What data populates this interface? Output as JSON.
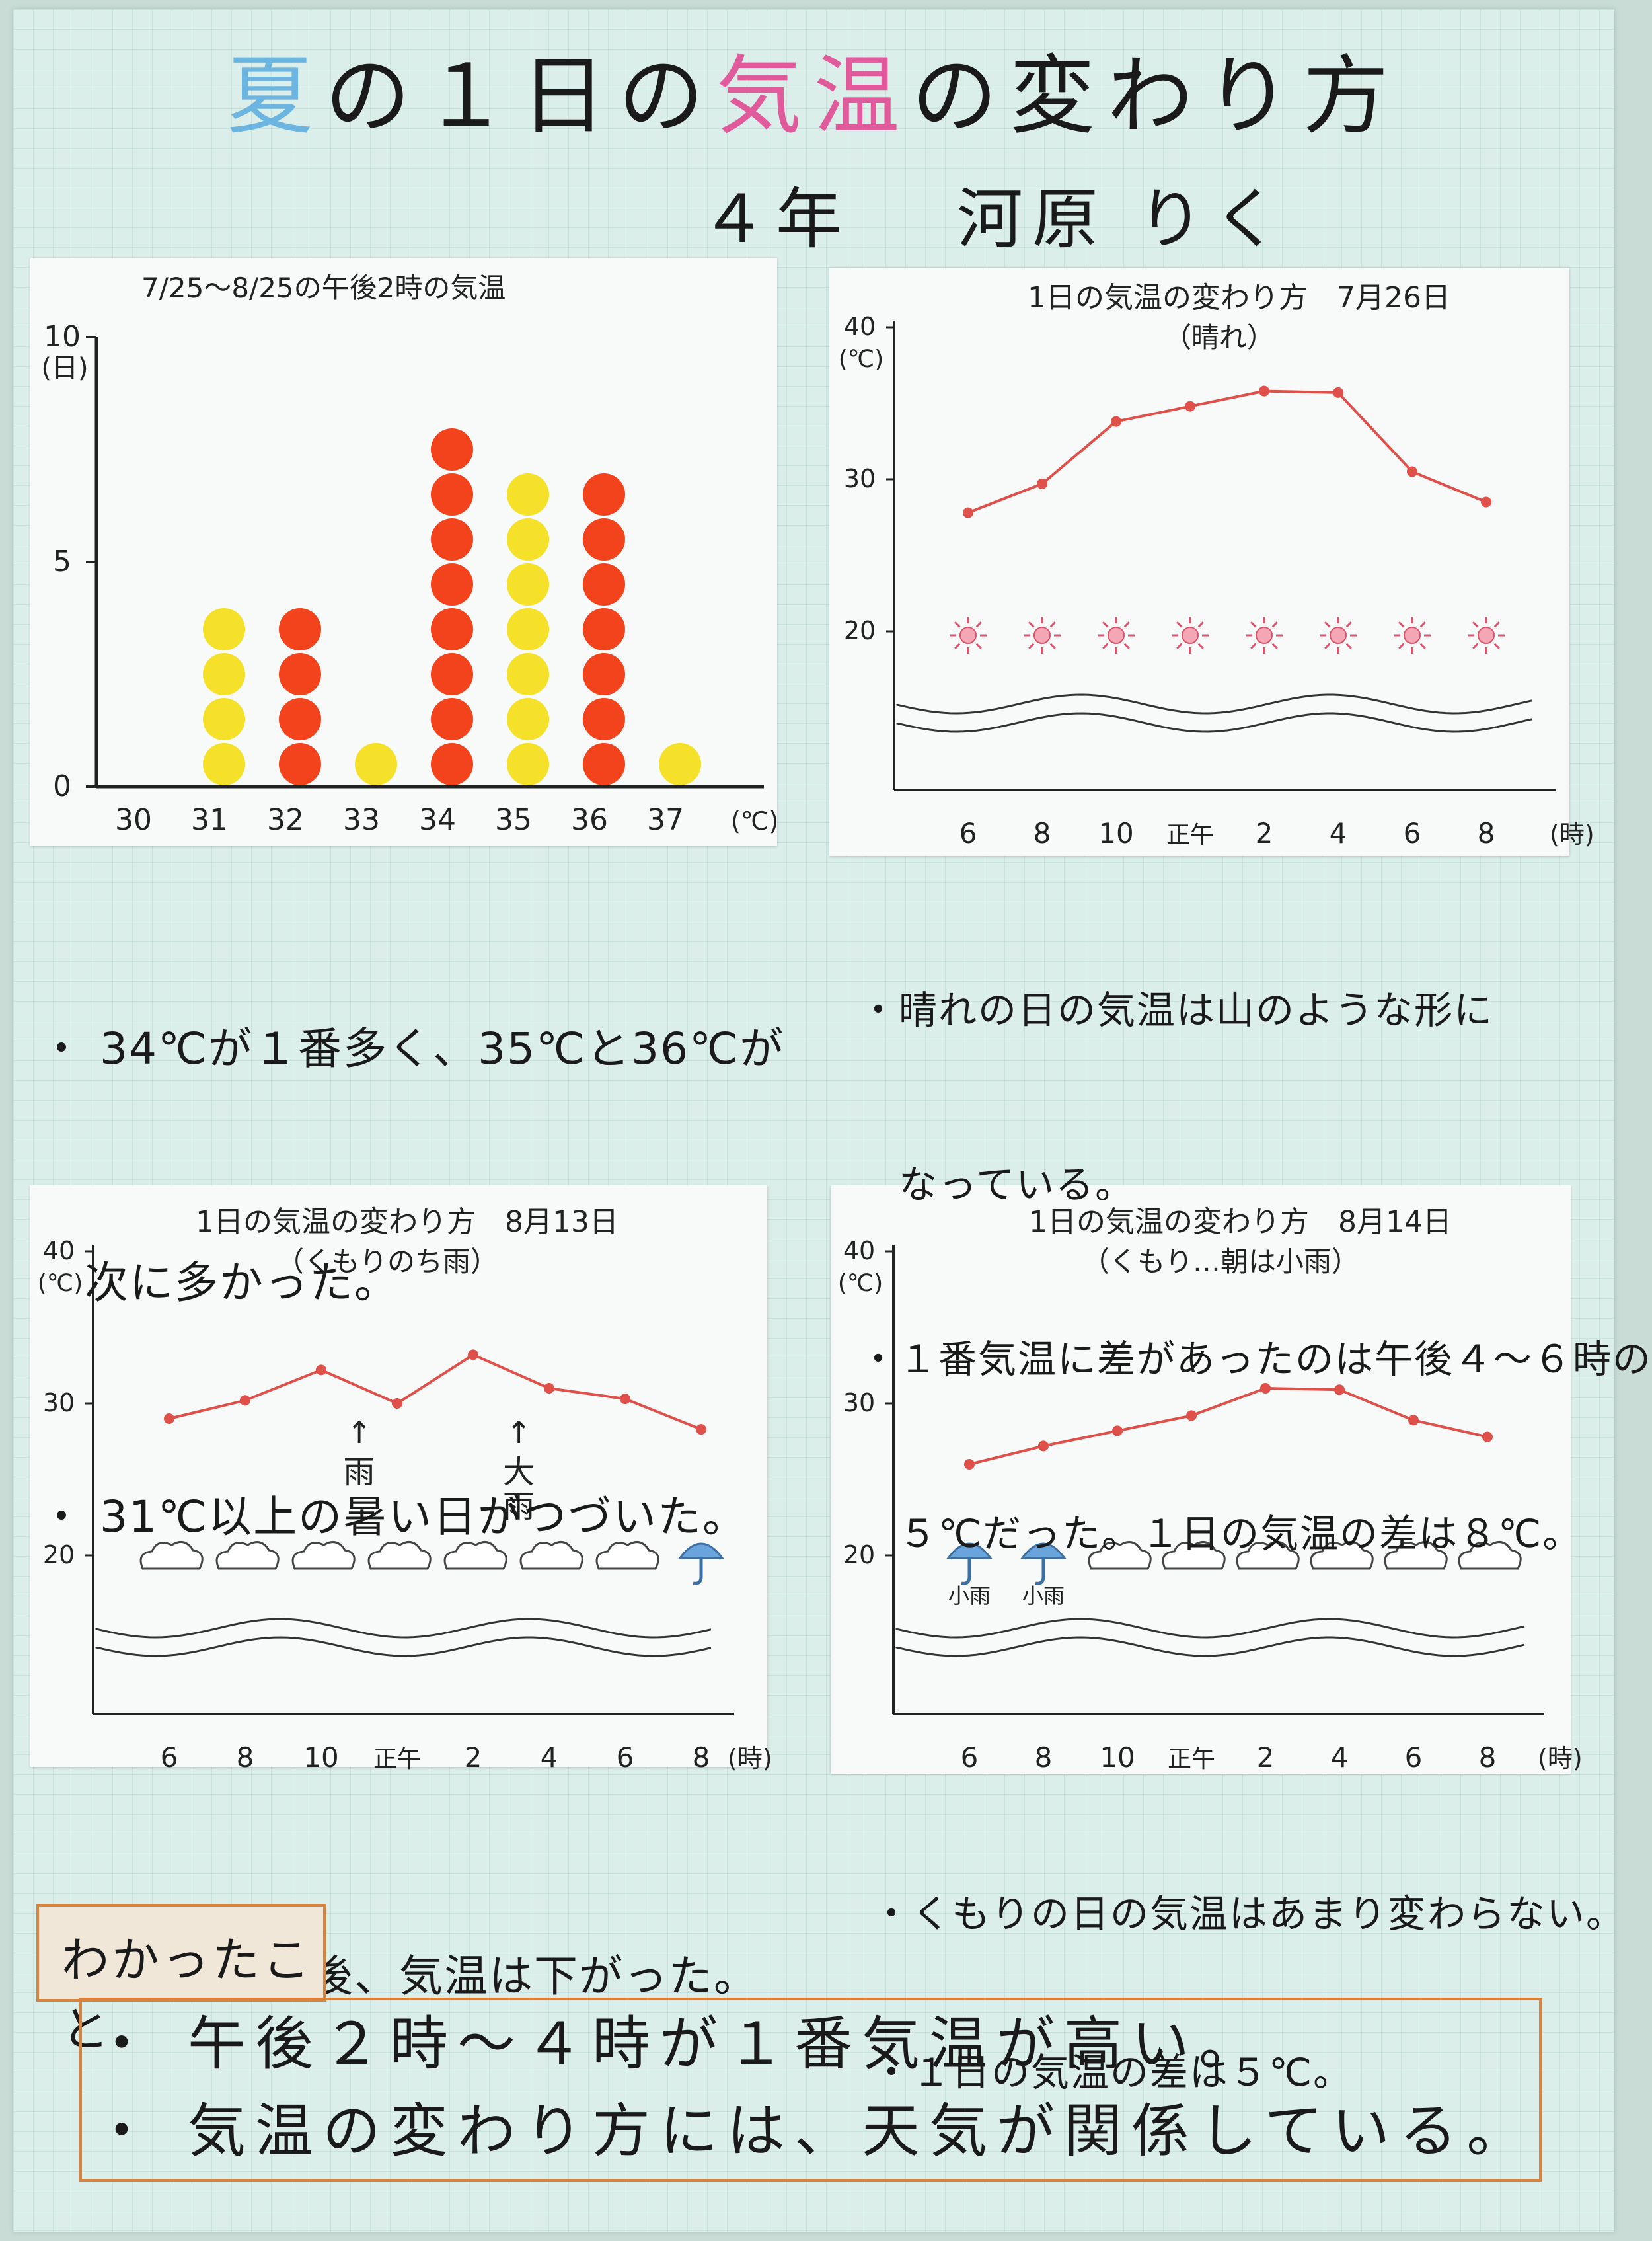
{
  "title": {
    "part1": "夏",
    "part2": "の１日の",
    "part3": "気温",
    "part4": "の変わり方"
  },
  "author": {
    "grade": "４年",
    "name": "河原 りく"
  },
  "colors": {
    "yellow_dot": "#f6e12a",
    "red_dot": "#f2431c",
    "line": "#e0504a",
    "sun": "#e0506a",
    "cloud_umbrella": "#6aa4dc"
  },
  "panel1": {
    "heading": "7/25〜8/25の午後2時の気温",
    "y_unit": "(日)",
    "x_unit": "(℃)",
    "y_ticks": [
      "0",
      "5",
      "10"
    ],
    "chart_data": {
      "type": "bar",
      "categories": [
        "30",
        "31",
        "32",
        "33",
        "34",
        "35",
        "36",
        "37"
      ],
      "values": [
        0,
        4,
        4,
        1,
        8,
        7,
        7,
        1
      ],
      "dot_colors": [
        "yellow",
        "yellow",
        "red",
        "yellow",
        "red",
        "yellow",
        "red",
        "yellow"
      ],
      "ylim": [
        0,
        10
      ]
    },
    "notes": [
      "・ 34℃が１番多く、35℃と36℃が",
      "　次に多かった。",
      "・ 31℃以上の暑い日がつづいた。"
    ]
  },
  "panel2": {
    "heading": "1日の気温の変わり方　7月26日",
    "sub": "（晴れ）",
    "y_unit": "(℃)",
    "x_unit": "(時)",
    "y_ticks": [
      "20",
      "30",
      "40"
    ],
    "x_ticks": [
      "6",
      "8",
      "10",
      "正午",
      "2",
      "4",
      "6",
      "8"
    ],
    "weather": [
      "sun",
      "sun",
      "sun",
      "sun",
      "sun",
      "sun",
      "sun",
      "sun"
    ],
    "chart_data": {
      "type": "line",
      "x": [
        "6",
        "8",
        "10",
        "正午",
        "2",
        "4",
        "6",
        "8"
      ],
      "values": [
        27.8,
        29.7,
        33.8,
        34.8,
        35.8,
        35.7,
        30.5,
        28.5
      ],
      "ylim": [
        10,
        40
      ]
    },
    "notes": [
      "・晴れの日の気温は山のような形に",
      "　なっている。",
      "・１番気温に差があったのは午後４〜６時の",
      "　５℃だった。１日の気温の差は８℃。"
    ]
  },
  "panel3": {
    "heading": "1日の気温の変わり方　8月13日",
    "sub": "（くもりのち雨）",
    "y_unit": "(℃)",
    "x_unit": "(時)",
    "y_ticks": [
      "20",
      "30",
      "40"
    ],
    "x_ticks": [
      "6",
      "8",
      "10",
      "正午",
      "2",
      "4",
      "6",
      "8"
    ],
    "weather": [
      "cloud",
      "cloud",
      "cloud",
      "cloud",
      "cloud",
      "cloud",
      "cloud",
      "umbrella"
    ],
    "annotations": [
      {
        "arrow": "↑",
        "text": "雨"
      },
      {
        "arrow": "↑",
        "text": "大雨"
      }
    ],
    "chart_data": {
      "type": "line",
      "x": [
        "6",
        "8",
        "10",
        "正午",
        "2",
        "4",
        "6",
        "8"
      ],
      "values": [
        29.0,
        30.2,
        32.2,
        30.0,
        33.2,
        31.0,
        30.3,
        28.3
      ],
      "ylim": [
        10,
        40
      ]
    },
    "notes": [
      "・雨がふった後、気温は下がった。"
    ]
  },
  "panel4": {
    "heading": "1日の気温の変わり方　8月14日",
    "sub": "（くもり…朝は小雨）",
    "y_unit": "(℃)",
    "x_unit": "(時)",
    "y_ticks": [
      "20",
      "30",
      "40"
    ],
    "x_ticks": [
      "6",
      "8",
      "10",
      "正午",
      "2",
      "4",
      "6",
      "8"
    ],
    "weather": [
      "umbrella",
      "umbrella",
      "cloud",
      "cloud",
      "cloud",
      "cloud",
      "cloud",
      "cloud"
    ],
    "weather_labels": [
      "小雨",
      "小雨"
    ],
    "chart_data": {
      "type": "line",
      "x": [
        "6",
        "8",
        "10",
        "正午",
        "2",
        "4",
        "6",
        "8"
      ],
      "values": [
        26.0,
        27.2,
        28.2,
        29.2,
        31.0,
        30.9,
        28.9,
        27.8
      ],
      "ylim": [
        10,
        40
      ]
    },
    "notes": [
      "・くもりの日の気温はあまり変わらない。",
      "・１日の気温の差は５℃。"
    ]
  },
  "conclusion": {
    "label": "わかったこと",
    "items": [
      "・ 午後２時〜４時が１番気温が高い。",
      "・ 気温の変わり方には、天気が関係している。"
    ]
  }
}
